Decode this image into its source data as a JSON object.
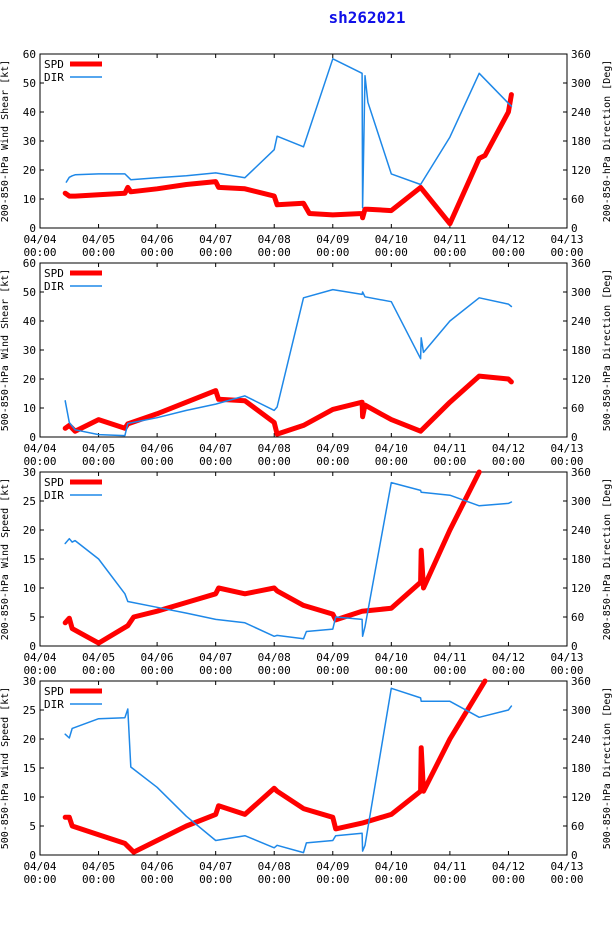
{
  "title": "sh262021",
  "colors": {
    "spd": "#ff0000",
    "dir": "#1e88e8",
    "axis": "#000000",
    "title": "#1010e8"
  },
  "x_tick_labels": [
    [
      "04/04",
      "00:00"
    ],
    [
      "04/05",
      "00:00"
    ],
    [
      "04/06",
      "00:00"
    ],
    [
      "04/07",
      "00:00"
    ],
    [
      "04/08",
      "00:00"
    ],
    [
      "04/09",
      "00:00"
    ],
    [
      "04/10",
      "00:00"
    ],
    [
      "04/11",
      "00:00"
    ],
    [
      "04/12",
      "00:00"
    ],
    [
      "04/13",
      "00:00"
    ]
  ],
  "chart_data": [
    {
      "type": "line",
      "ylabel": "200-850-hPa Wind Shear [kt]",
      "y2label": "200-850-hPa Direction [Deg]",
      "xlim": [
        0,
        9
      ],
      "ylim": [
        0,
        60
      ],
      "yticks": [
        0,
        10,
        20,
        30,
        40,
        50,
        60
      ],
      "y2lim": [
        0,
        360
      ],
      "y2ticks": [
        0,
        60,
        120,
        180,
        240,
        300,
        360
      ],
      "legend": [
        "SPD",
        "DIR"
      ],
      "series": [
        {
          "name": "SPD",
          "axis": "left",
          "x": [
            0.43,
            0.5,
            0.6,
            1.0,
            1.45,
            1.5,
            1.55,
            2.0,
            2.5,
            3.0,
            3.05,
            3.5,
            4.0,
            4.05,
            4.5,
            4.6,
            5.0,
            5.5,
            5.51,
            5.55,
            5.6,
            6.0,
            6.5,
            7.0,
            7.5,
            7.6,
            8.0,
            8.05
          ],
          "y": [
            12,
            11,
            11,
            11.5,
            12,
            14,
            12.5,
            13.5,
            15,
            16,
            14,
            13.5,
            11,
            8,
            8.5,
            5,
            4.5,
            5,
            3.5,
            6.5,
            6.5,
            6,
            14,
            1.5,
            24,
            25,
            40,
            46
          ]
        },
        {
          "name": "DIR",
          "axis": "right",
          "x": [
            0.45,
            0.5,
            0.55,
            0.6,
            1.0,
            1.45,
            1.55,
            2.0,
            2.5,
            3.0,
            3.5,
            4.0,
            4.05,
            4.5,
            5.0,
            5.5,
            5.51,
            5.55,
            5.6,
            6.0,
            6.5,
            7.0,
            7.5,
            8.0,
            8.05
          ],
          "y": [
            95,
            105,
            108,
            110,
            112,
            112,
            100,
            104,
            108,
            114,
            104,
            162,
            190,
            168,
            350,
            320,
            42,
            315,
            260,
            112,
            90,
            188,
            320,
            258,
            252
          ]
        }
      ]
    },
    {
      "type": "line",
      "ylabel": "500-850-hPa Wind Shear [kt]",
      "y2label": "500-850-hPa Direction [Deg]",
      "xlim": [
        0,
        9
      ],
      "ylim": [
        0,
        60
      ],
      "yticks": [
        0,
        10,
        20,
        30,
        40,
        50,
        60
      ],
      "y2lim": [
        0,
        360
      ],
      "y2ticks": [
        0,
        60,
        120,
        180,
        240,
        300,
        360
      ],
      "legend": [
        "SPD",
        "DIR"
      ],
      "series": [
        {
          "name": "SPD",
          "axis": "left",
          "x": [
            0.43,
            0.5,
            0.6,
            1.0,
            1.45,
            1.5,
            2.0,
            2.5,
            3.0,
            3.05,
            3.5,
            4.0,
            4.05,
            4.5,
            5.0,
            5.5,
            5.51,
            5.55,
            6.0,
            6.5,
            7.0,
            7.5,
            8.0,
            8.05
          ],
          "y": [
            3,
            4,
            2,
            6,
            3,
            4.5,
            8,
            12,
            16,
            13,
            12.5,
            5,
            1,
            4,
            9.5,
            12,
            7,
            11,
            6,
            2,
            12,
            21,
            20,
            19
          ]
        },
        {
          "name": "DIR",
          "axis": "right",
          "x": [
            0.43,
            0.5,
            0.6,
            1.0,
            1.45,
            1.5,
            2.0,
            2.5,
            3.0,
            3.5,
            4.0,
            4.05,
            4.5,
            5.0,
            5.5,
            5.51,
            5.55,
            6.0,
            6.5,
            6.51,
            6.55,
            7.0,
            7.5,
            8.0,
            8.05
          ],
          "y": [
            75,
            30,
            15,
            5,
            3,
            28,
            40,
            55,
            68,
            85,
            55,
            62,
            288,
            305,
            295,
            300,
            290,
            280,
            162,
            205,
            175,
            240,
            288,
            275,
            270
          ]
        }
      ]
    },
    {
      "type": "line",
      "ylabel": "200-850-hPa Wind Speed [kt]",
      "y2label": "200-850-hPa Direction [Deg]",
      "xlim": [
        0,
        9
      ],
      "ylim": [
        0,
        30
      ],
      "yticks": [
        0,
        5,
        10,
        15,
        20,
        25,
        30
      ],
      "y2lim": [
        0,
        360
      ],
      "y2ticks": [
        0,
        60,
        120,
        180,
        240,
        300,
        360
      ],
      "legend": [
        "SPD",
        "DIR"
      ],
      "series": [
        {
          "name": "SPD",
          "axis": "left",
          "x": [
            0.43,
            0.5,
            0.55,
            1.0,
            1.5,
            1.6,
            2.0,
            2.5,
            3.0,
            3.05,
            3.5,
            4.0,
            4.05,
            4.5,
            5.0,
            5.05,
            5.5,
            6.0,
            6.5,
            6.51,
            6.55,
            7.0,
            7.5
          ],
          "y": [
            4,
            4.8,
            3,
            0.5,
            3.5,
            5,
            6,
            7.5,
            9,
            10,
            9,
            10,
            9.5,
            7,
            5.5,
            4.5,
            6,
            6.5,
            11,
            16.5,
            10,
            20,
            30
          ]
        },
        {
          "name": "DIR",
          "axis": "right",
          "x": [
            0.43,
            0.5,
            0.55,
            0.6,
            1.0,
            1.45,
            1.5,
            2.0,
            2.5,
            3.0,
            3.5,
            4.0,
            4.05,
            4.5,
            4.55,
            5.0,
            5.05,
            5.5,
            5.51,
            5.55,
            6.0,
            6.5,
            6.51,
            7.0,
            7.5,
            8.0,
            8.05
          ],
          "y": [
            212,
            222,
            215,
            218,
            180,
            108,
            92,
            80,
            68,
            55,
            48,
            20,
            22,
            15,
            30,
            35,
            60,
            55,
            20,
            40,
            338,
            322,
            318,
            312,
            290,
            295,
            298
          ]
        }
      ]
    },
    {
      "type": "line",
      "ylabel": "500-850-hPa Wind Speed [kt]",
      "y2label": "500-850-hPa Direction [Deg]",
      "xlim": [
        0,
        9
      ],
      "ylim": [
        0,
        30
      ],
      "yticks": [
        0,
        5,
        10,
        15,
        20,
        25,
        30
      ],
      "y2lim": [
        0,
        360
      ],
      "y2ticks": [
        0,
        60,
        120,
        180,
        240,
        300,
        360
      ],
      "legend": [
        "SPD",
        "DIR"
      ],
      "series": [
        {
          "name": "SPD",
          "axis": "left",
          "x": [
            0.43,
            0.5,
            0.55,
            1.0,
            1.45,
            1.5,
            1.6,
            2.0,
            2.5,
            3.0,
            3.05,
            3.5,
            4.0,
            4.05,
            4.5,
            5.0,
            5.05,
            5.5,
            6.0,
            6.5,
            6.51,
            6.55,
            7.0,
            7.6
          ],
          "y": [
            6.5,
            6.5,
            5,
            3.5,
            2,
            1.5,
            0.5,
            2.5,
            5,
            7,
            8.5,
            7,
            11.5,
            11,
            8,
            6.5,
            4.5,
            5.5,
            7,
            11,
            18.5,
            11,
            20,
            30
          ]
        },
        {
          "name": "DIR",
          "axis": "right",
          "x": [
            0.43,
            0.5,
            0.55,
            1.0,
            1.45,
            1.5,
            1.55,
            2.0,
            2.5,
            3.0,
            3.5,
            4.0,
            4.05,
            4.5,
            4.55,
            5.0,
            5.05,
            5.5,
            5.51,
            5.55,
            6.0,
            6.5,
            6.51,
            7.0,
            7.5,
            8.0,
            8.05
          ],
          "y": [
            250,
            242,
            262,
            282,
            284,
            302,
            182,
            140,
            80,
            30,
            40,
            15,
            20,
            5,
            25,
            30,
            40,
            45,
            8,
            20,
            345,
            325,
            318,
            318,
            285,
            300,
            308
          ]
        }
      ]
    }
  ]
}
